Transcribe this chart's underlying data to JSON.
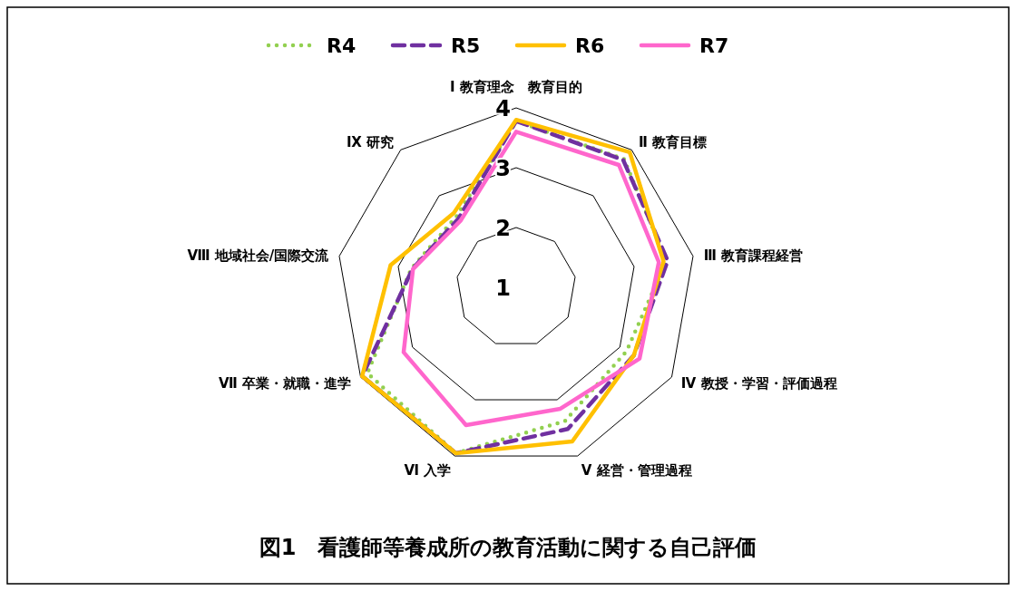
{
  "chart_data": {
    "type": "radar",
    "title": "図1　看護師等養成所の教育活動に関する自己評価",
    "categories": [
      "Ⅰ 教育理念　教育目的",
      "Ⅱ 教育目標",
      "Ⅲ 教育課程経営",
      "Ⅳ 教授・学習・評価過程",
      "Ⅴ 経営・管理過程",
      "Ⅵ 入学",
      "Ⅶ 卒業・就職・進学",
      "Ⅷ 地域社会/国際交流",
      "Ⅸ 研究"
    ],
    "series": [
      {
        "name": "R4",
        "color": "#92d050",
        "line_style": "dotted",
        "values": [
          3.78,
          3.8,
          3.55,
          3.13,
          3.38,
          3.95,
          3.87,
          2.78,
          2.55
        ]
      },
      {
        "name": "R5",
        "color": "#7030a0",
        "line_style": "dashed",
        "values": [
          3.78,
          3.78,
          3.57,
          3.27,
          3.52,
          3.95,
          3.97,
          2.76,
          2.5
        ]
      },
      {
        "name": "R6",
        "color": "#ffc000",
        "line_style": "solid",
        "values": [
          3.8,
          3.95,
          3.5,
          3.27,
          3.74,
          3.95,
          3.97,
          3.13,
          2.62
        ]
      },
      {
        "name": "R7",
        "color": "#ff66cc",
        "line_style": "solid",
        "values": [
          3.6,
          3.67,
          3.42,
          3.38,
          3.16,
          3.45,
          3.17,
          2.75,
          2.45
        ]
      }
    ],
    "ylim": [
      1,
      4
    ],
    "yticks": [
      1,
      2,
      3,
      4
    ],
    "grid": true,
    "legend": "top",
    "marker": "none"
  }
}
